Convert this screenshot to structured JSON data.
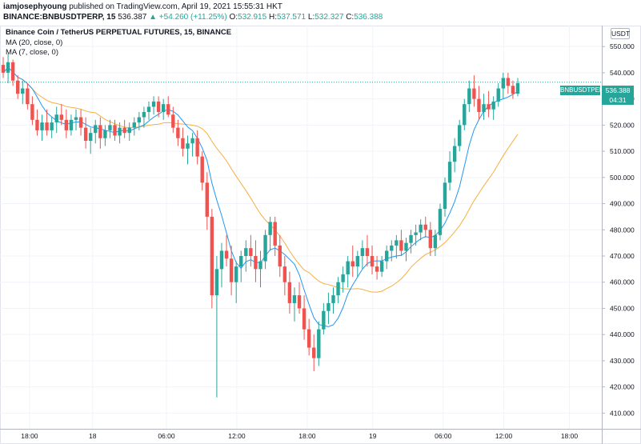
{
  "header": {
    "author": "iamjosephyoung",
    "published_text": "published on TradingView.com, April 19, 2021 15:55:31 HKT",
    "symbol": "BINANCE:BNBUSDTPERP, 15",
    "last": "536.387",
    "change": "▲ +54.260 (+11.25%)",
    "o_label": "O:",
    "o_value": "532.915",
    "h_label": "H:",
    "h_value": "537.571",
    "l_label": "L:",
    "l_value": "532.327",
    "c_label": "C:",
    "c_value": "536.388"
  },
  "legend": {
    "title": "Binance Coin / TetherUS PERPETUAL FUTURES, 15, BINANCE",
    "ma1": "MA (20, close, 0)",
    "ma2": "MA (7, close, 0)"
  },
  "currency": "USDT",
  "price_tag": {
    "symbol": "BNBUSDTPERP",
    "price": "536.388",
    "countdown": "04:31"
  },
  "colors": {
    "up": "#26a69a",
    "down": "#ef5350",
    "ma20": "#f5b041",
    "ma7": "#2196f3",
    "grid": "#f0f3fa",
    "axis_text": "#131722"
  },
  "chart_data": {
    "type": "candlestick",
    "y_ticks": [
      "550.000",
      "540.000",
      "530.000",
      "520.000",
      "510.000",
      "500.000",
      "490.000",
      "480.000",
      "470.000",
      "460.000",
      "450.000",
      "440.000",
      "430.000",
      "420.000",
      "410.000"
    ],
    "x_ticks": [
      "18:00",
      "18",
      "06:00",
      "12:00",
      "18:00",
      "19",
      "06:00",
      "12:00",
      "18:00"
    ],
    "ylim": [
      404,
      558
    ],
    "last_price": 536.388,
    "candles": [
      [
        543,
        546,
        538,
        540
      ],
      [
        540,
        547,
        536,
        544
      ],
      [
        544,
        545,
        535,
        537
      ],
      [
        537,
        539,
        530,
        532
      ],
      [
        532,
        537,
        528,
        534
      ],
      [
        534,
        536,
        526,
        528
      ],
      [
        528,
        531,
        520,
        522
      ],
      [
        522,
        526,
        516,
        518
      ],
      [
        518,
        524,
        514,
        521
      ],
      [
        521,
        526,
        516,
        518
      ],
      [
        518,
        523,
        515,
        521
      ],
      [
        521,
        527,
        517,
        524
      ],
      [
        524,
        528,
        520,
        522
      ],
      [
        522,
        526,
        515,
        518
      ],
      [
        518,
        524,
        516,
        522
      ],
      [
        522,
        526,
        518,
        523
      ],
      [
        523,
        526,
        516,
        519
      ],
      [
        519,
        523,
        511,
        514
      ],
      [
        514,
        519,
        509,
        517
      ],
      [
        517,
        522,
        513,
        520
      ],
      [
        520,
        523,
        511,
        515
      ],
      [
        515,
        520,
        512,
        518
      ],
      [
        518,
        522,
        515,
        520
      ],
      [
        520,
        522,
        514,
        516
      ],
      [
        516,
        521,
        513,
        519
      ],
      [
        519,
        522,
        515,
        517
      ],
      [
        517,
        521,
        514,
        519
      ],
      [
        519,
        523,
        516,
        521
      ],
      [
        521,
        525,
        518,
        523
      ],
      [
        523,
        527,
        519,
        525
      ],
      [
        525,
        529,
        522,
        527
      ],
      [
        527,
        531,
        524,
        529
      ],
      [
        529,
        531,
        523,
        525
      ],
      [
        525,
        530,
        522,
        528
      ],
      [
        528,
        531,
        523,
        524
      ],
      [
        524,
        527,
        517,
        519
      ],
      [
        519,
        522,
        512,
        515
      ],
      [
        515,
        519,
        508,
        511
      ],
      [
        511,
        516,
        505,
        513
      ],
      [
        513,
        517,
        508,
        515
      ],
      [
        515,
        518,
        505,
        508
      ],
      [
        508,
        510,
        495,
        498
      ],
      [
        498,
        502,
        480,
        485
      ],
      [
        485,
        488,
        450,
        455
      ],
      [
        455,
        470,
        416,
        465
      ],
      [
        465,
        475,
        458,
        472
      ],
      [
        472,
        478,
        466,
        469
      ],
      [
        469,
        474,
        455,
        460
      ],
      [
        460,
        468,
        452,
        466
      ],
      [
        466,
        472,
        460,
        470
      ],
      [
        470,
        476,
        464,
        473
      ],
      [
        473,
        478,
        466,
        470
      ],
      [
        470,
        476,
        460,
        465
      ],
      [
        465,
        472,
        458,
        468
      ],
      [
        468,
        480,
        465,
        478
      ],
      [
        478,
        485,
        472,
        483
      ],
      [
        483,
        485,
        470,
        474
      ],
      [
        474,
        478,
        462,
        466
      ],
      [
        466,
        470,
        455,
        460
      ],
      [
        460,
        464,
        448,
        452
      ],
      [
        452,
        458,
        445,
        455
      ],
      [
        455,
        460,
        448,
        450
      ],
      [
        450,
        455,
        438,
        442
      ],
      [
        442,
        446,
        432,
        435
      ],
      [
        435,
        440,
        426,
        431
      ],
      [
        431,
        445,
        428,
        442
      ],
      [
        442,
        452,
        440,
        449
      ],
      [
        449,
        456,
        444,
        452
      ],
      [
        452,
        458,
        448,
        455
      ],
      [
        455,
        462,
        452,
        460
      ],
      [
        460,
        466,
        456,
        463
      ],
      [
        463,
        470,
        458,
        468
      ],
      [
        468,
        474,
        462,
        466
      ],
      [
        466,
        472,
        462,
        470
      ],
      [
        470,
        476,
        465,
        473
      ],
      [
        473,
        478,
        466,
        470
      ],
      [
        470,
        474,
        463,
        466
      ],
      [
        466,
        470,
        461,
        464
      ],
      [
        464,
        470,
        462,
        468
      ],
      [
        468,
        474,
        465,
        472
      ],
      [
        472,
        476,
        468,
        474
      ],
      [
        474,
        478,
        469,
        476
      ],
      [
        476,
        480,
        470,
        472
      ],
      [
        472,
        477,
        468,
        475
      ],
      [
        475,
        480,
        471,
        478
      ],
      [
        478,
        482,
        474,
        479
      ],
      [
        479,
        484,
        476,
        482
      ],
      [
        482,
        485,
        477,
        480
      ],
      [
        480,
        483,
        470,
        473
      ],
      [
        473,
        480,
        470,
        478
      ],
      [
        478,
        490,
        476,
        488
      ],
      [
        488,
        500,
        485,
        498
      ],
      [
        498,
        510,
        495,
        506
      ],
      [
        506,
        515,
        502,
        512
      ],
      [
        512,
        522,
        510,
        520
      ],
      [
        520,
        530,
        518,
        528
      ],
      [
        528,
        537,
        525,
        534
      ],
      [
        534,
        539,
        527,
        530
      ],
      [
        530,
        535,
        522,
        525
      ],
      [
        525,
        532,
        522,
        528
      ],
      [
        528,
        533,
        523,
        526
      ],
      [
        526,
        531,
        522,
        529
      ],
      [
        529,
        536,
        527,
        534
      ],
      [
        534,
        540,
        530,
        538
      ],
      [
        538,
        540,
        532,
        535
      ],
      [
        535,
        537,
        530,
        532
      ],
      [
        532,
        538,
        531,
        536
      ]
    ]
  }
}
